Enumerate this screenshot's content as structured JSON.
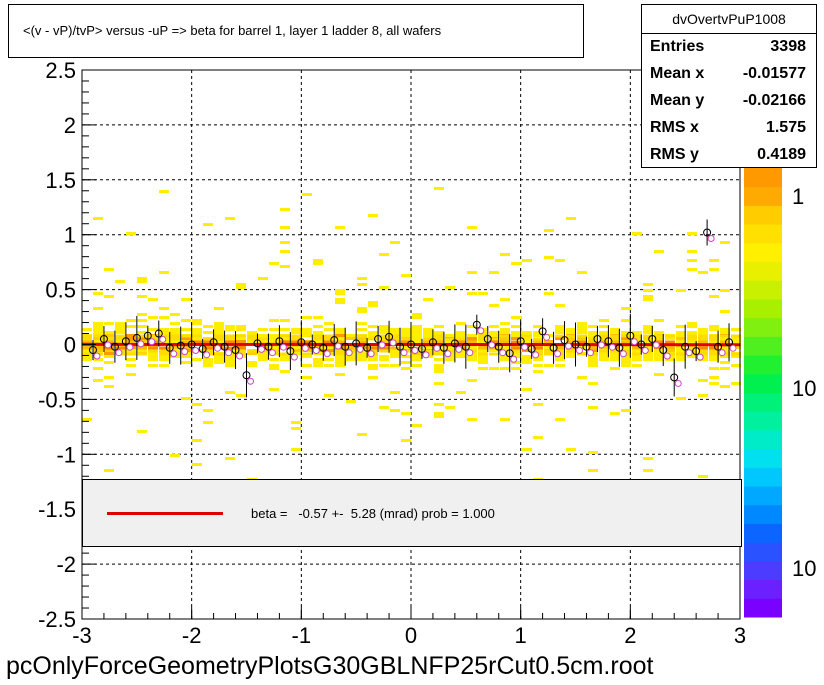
{
  "title": "<(v - vP)/tvP> versus  -uP => beta for barrel 1, layer 1 ladder 8, all wafers",
  "stats": {
    "name": "dvOvertvPuP1008",
    "rows": [
      {
        "label": "Entries",
        "value": "3398"
      },
      {
        "label": "Mean x",
        "value": "-0.01577"
      },
      {
        "label": "Mean y",
        "value": "-0.02166"
      },
      {
        "label": "RMS x",
        "value": "1.575"
      },
      {
        "label": "RMS y",
        "value": "0.4189"
      }
    ]
  },
  "fit_legend": {
    "text": "beta =   -0.57 +-  5.28 (mrad) prob = 1.000",
    "line_color": "#e00000"
  },
  "footer": "pcOnlyForceGeometryPlotsG30GBLNFP25rCut0.5cm.root",
  "chart_data": {
    "type": "heatmap",
    "xlim": [
      -3,
      3
    ],
    "ylim": [
      -2.5,
      2.5
    ],
    "x_ticks": [
      "-3",
      "-2",
      "-1",
      "0",
      "1",
      "2",
      "3"
    ],
    "y_ticks": [
      "-2.5",
      "-2",
      "-1.5",
      "-1",
      "-0.5",
      "0",
      "0.5",
      "1",
      "1.5",
      "2",
      "2.5"
    ],
    "grid": true,
    "colorbar_labels": [
      "1",
      "10",
      "10"
    ],
    "profile_points_x": [
      -2.9,
      -2.8,
      -2.7,
      -2.6,
      -2.5,
      -2.4,
      -2.3,
      -2.2,
      -2.1,
      -2.0,
      -1.9,
      -1.8,
      -1.7,
      -1.6,
      -1.5,
      -1.4,
      -1.3,
      -1.2,
      -1.1,
      -1.0,
      -0.9,
      -0.8,
      -0.7,
      -0.6,
      -0.5,
      -0.4,
      -0.3,
      -0.2,
      -0.1,
      0.0,
      0.1,
      0.2,
      0.3,
      0.4,
      0.5,
      0.6,
      0.7,
      0.8,
      0.9,
      1.0,
      1.1,
      1.2,
      1.3,
      1.4,
      1.5,
      1.6,
      1.7,
      1.8,
      1.9,
      2.0,
      2.1,
      2.2,
      2.3,
      2.4,
      2.5,
      2.6,
      2.7,
      2.8,
      2.9
    ],
    "profile_points_y": [
      -0.05,
      0.05,
      -0.02,
      0.03,
      0.06,
      0.08,
      0.1,
      -0.03,
      -0.01,
      0.0,
      -0.04,
      0.02,
      -0.02,
      -0.05,
      -0.28,
      0.01,
      -0.02,
      0.03,
      -0.06,
      0.02,
      0.0,
      -0.03,
      0.04,
      -0.02,
      0.01,
      -0.03,
      0.05,
      0.07,
      -0.02,
      0.0,
      -0.04,
      0.02,
      -0.03,
      0.01,
      -0.02,
      0.18,
      0.05,
      -0.02,
      -0.08,
      0.03,
      -0.04,
      0.12,
      -0.03,
      0.04,
      0.0,
      -0.02,
      0.05,
      0.03,
      -0.03,
      0.08,
      0.0,
      0.05,
      -0.05,
      -0.3,
      -0.02,
      -0.06,
      1.02,
      -0.02,
      0.02
    ],
    "fit_line": {
      "slope": -0.00057,
      "intercept": 0.0
    }
  }
}
